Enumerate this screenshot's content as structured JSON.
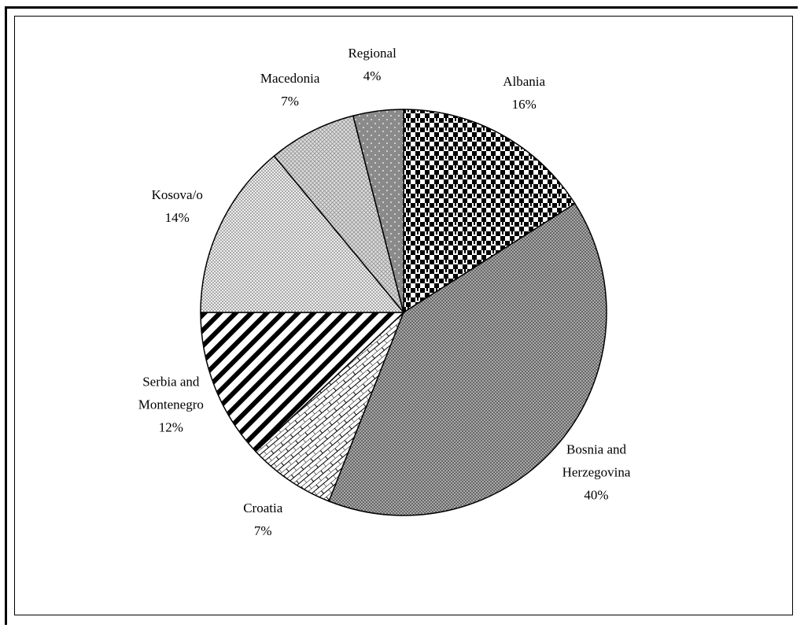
{
  "chart_data": {
    "type": "pie",
    "categories": [
      "Albania",
      "Bosnia and Herzegovina",
      "Croatia",
      "Serbia and Montenegro",
      "Kosova/o",
      "Macedonia",
      "Regional"
    ],
    "values": [
      16,
      40,
      7,
      12,
      14,
      7,
      4
    ],
    "value_labels": [
      "16%",
      "40%",
      "7%",
      "12%",
      "14%",
      "7%",
      "4%"
    ]
  }
}
